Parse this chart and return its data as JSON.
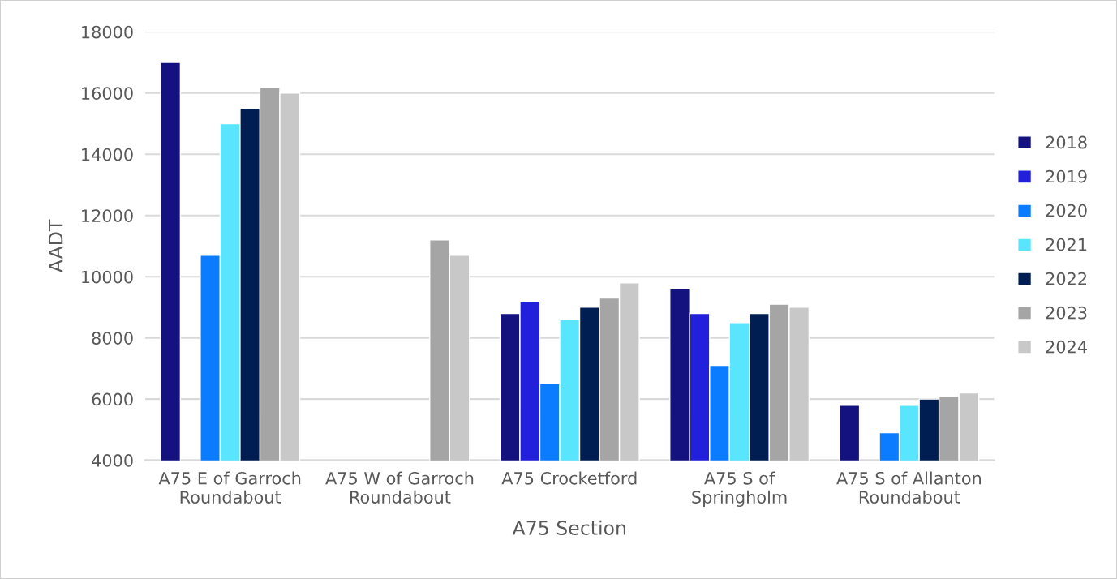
{
  "chart_data": {
    "type": "bar",
    "xlabel": "A75 Section",
    "ylabel": "AADT",
    "categories": [
      "A75 E of Garroch\nRoundabout",
      "A75 W of Garroch\nRoundabout",
      "A75 Crocketford",
      "A75 S of\nSpringholm",
      "A75 S of Allanton\nRoundabout"
    ],
    "series": [
      {
        "name": "2018",
        "color": "#14127f",
        "values": [
          17000,
          null,
          8800,
          9600,
          5800
        ]
      },
      {
        "name": "2019",
        "color": "#2320dc",
        "values": [
          null,
          null,
          9200,
          8800,
          null
        ]
      },
      {
        "name": "2020",
        "color": "#0b7cff",
        "values": [
          10700,
          null,
          6500,
          7100,
          4900
        ]
      },
      {
        "name": "2021",
        "color": "#5ae5ff",
        "values": [
          15000,
          null,
          8600,
          8500,
          5800
        ]
      },
      {
        "name": "2022",
        "color": "#001e52",
        "values": [
          15500,
          null,
          9000,
          8800,
          6000
        ]
      },
      {
        "name": "2023",
        "color": "#a5a5a5",
        "values": [
          16200,
          11200,
          9300,
          9100,
          6100
        ]
      },
      {
        "name": "2024",
        "color": "#c8c8c8",
        "values": [
          16000,
          10700,
          9800,
          9000,
          6200
        ]
      }
    ],
    "ylim": [
      4000,
      18000
    ],
    "yticks": [
      4000,
      6000,
      8000,
      10000,
      12000,
      14000,
      16000,
      18000
    ],
    "grid": "y",
    "legend": "right"
  }
}
